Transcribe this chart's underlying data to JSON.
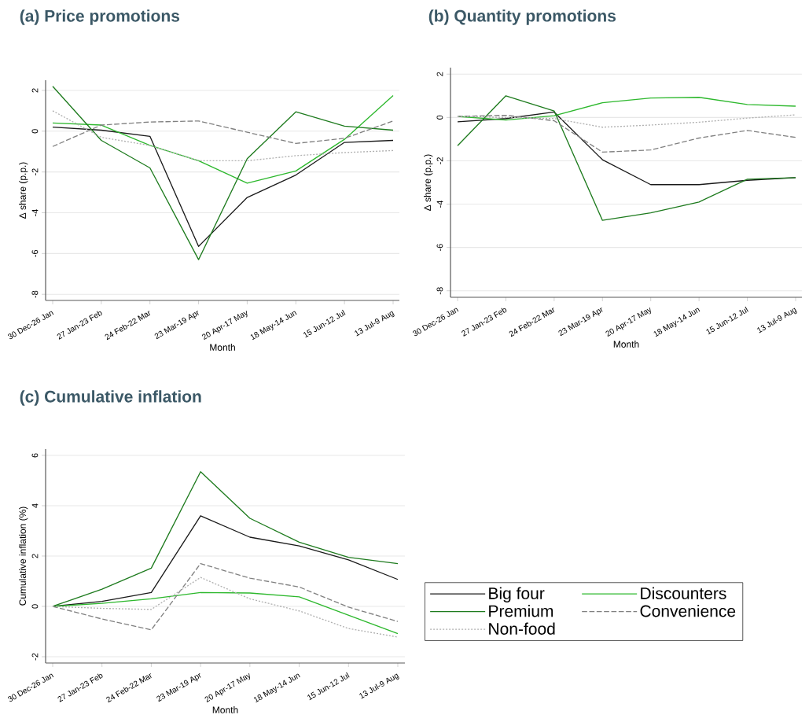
{
  "chart_data": [
    {
      "type": "line",
      "title": "(a) Price promotions",
      "xlabel": "Month",
      "ylabel": "Δ share (p.p.)",
      "categories": [
        "30 Dec-26 Jan",
        "27 Jan-23 Feb",
        "24 Feb-22 Mar",
        "23 Mar-19 Apr",
        "20 Apr-17 May",
        "18 May-14 Jun",
        "15 Jun-12 Jul",
        "13 Jul-9 Aug"
      ],
      "ylim": [
        -8.3,
        2.5
      ],
      "yticks": [
        -8,
        -6,
        -4,
        -2,
        0,
        2
      ],
      "grid": "y",
      "series": [
        {
          "color": "#1a1a1a",
          "line_style": "solid",
          "values": [
            0.2,
            0.05,
            -0.25,
            -5.65,
            -3.25,
            -2.15,
            -0.55,
            -0.45
          ]
        },
        {
          "color": "#2db82d",
          "line_style": "solid",
          "values": [
            0.4,
            0.3,
            -0.7,
            -1.45,
            -2.55,
            -1.95,
            -0.4,
            1.75
          ]
        },
        {
          "color": "#1e7b1e",
          "line_style": "solid",
          "values": [
            2.2,
            -0.45,
            -1.8,
            -6.3,
            -1.35,
            0.95,
            0.25,
            0.05
          ]
        },
        {
          "color": "#808080",
          "line_style": "dashed",
          "values": [
            -0.75,
            0.3,
            0.45,
            0.5,
            -0.05,
            -0.6,
            -0.35,
            0.5
          ]
        },
        {
          "color": "#b0b0b0",
          "line_style": "dotted",
          "values": [
            1.0,
            -0.3,
            -0.7,
            -1.45,
            -1.45,
            -1.2,
            -1.05,
            -0.95
          ]
        }
      ]
    },
    {
      "type": "line",
      "title": "(b) Quantity promotions",
      "xlabel": "Month",
      "ylabel": "Δ share (p.p.)",
      "categories": [
        "30 Dec-26 Jan",
        "27 Jan-23 Feb",
        "24 Feb-22 Mar",
        "23 Mar-19 Apr",
        "20 Apr-17 May",
        "18 May-14 Jun",
        "15 Jun-12 Jul",
        "13 Jul-9 Aug"
      ],
      "ylim": [
        -8.3,
        2.3
      ],
      "yticks": [
        -8,
        -6,
        -4,
        -2,
        0,
        2
      ],
      "grid": "y",
      "series": [
        {
          "color": "#1a1a1a",
          "line_style": "solid",
          "values": [
            -0.2,
            -0.05,
            0.25,
            -1.95,
            -3.1,
            -3.1,
            -2.9,
            -2.78
          ]
        },
        {
          "color": "#2db82d",
          "line_style": "solid",
          "values": [
            0.05,
            -0.12,
            0.08,
            0.68,
            0.9,
            0.93,
            0.6,
            0.52
          ]
        },
        {
          "color": "#1e7b1e",
          "line_style": "solid",
          "values": [
            -1.3,
            1.0,
            0.3,
            -4.75,
            -4.4,
            -3.9,
            -2.85,
            -2.78
          ]
        },
        {
          "color": "#808080",
          "line_style": "dashed",
          "values": [
            0.05,
            0.1,
            -0.15,
            -1.6,
            -1.5,
            -0.95,
            -0.6,
            -0.92
          ]
        },
        {
          "color": "#b0b0b0",
          "line_style": "dotted",
          "values": [
            0.05,
            0.0,
            -0.05,
            -0.45,
            -0.35,
            -0.22,
            -0.03,
            0.12
          ]
        }
      ]
    },
    {
      "type": "line",
      "title": "(c) Cumulative inflation",
      "xlabel": "Month",
      "ylabel": "Cumulative inflation (%)",
      "categories": [
        "30 Dec-26 Jan",
        "27 Jan-23 Feb",
        "24 Feb-22 Mar",
        "23 Mar-19 Apr",
        "20 Apr-17 May",
        "18 May-14 Jun",
        "15 Jun-12 Jul",
        "13 Jul-9 Aug"
      ],
      "ylim": [
        -2.25,
        6.25
      ],
      "yticks": [
        -2,
        0,
        2,
        4,
        6
      ],
      "grid": "y",
      "legend": "right",
      "series": [
        {
          "name": "Big four",
          "color": "#1a1a1a",
          "line_style": "solid",
          "values": [
            0,
            0.2,
            0.55,
            3.6,
            2.75,
            2.4,
            1.85,
            1.07
          ]
        },
        {
          "name": "Discounters",
          "color": "#2db82d",
          "line_style": "solid",
          "values": [
            0,
            0.12,
            0.3,
            0.55,
            0.53,
            0.38,
            -0.35,
            -1.08
          ]
        },
        {
          "name": "Premium",
          "color": "#1e7b1e",
          "line_style": "solid",
          "values": [
            0,
            0.68,
            1.52,
            5.35,
            3.5,
            2.55,
            1.95,
            1.7
          ]
        },
        {
          "name": "Convenience",
          "color": "#808080",
          "line_style": "dashed",
          "values": [
            0,
            -0.5,
            -0.93,
            1.7,
            1.12,
            0.77,
            -0.03,
            -0.6
          ]
        },
        {
          "name": "Non-food",
          "color": "#b0b0b0",
          "line_style": "dotted",
          "values": [
            0,
            -0.08,
            -0.12,
            1.15,
            0.3,
            -0.18,
            -0.88,
            -1.22
          ]
        }
      ]
    }
  ]
}
